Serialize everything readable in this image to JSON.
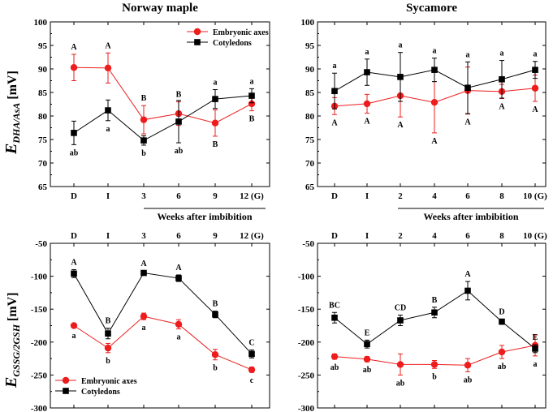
{
  "figure": {
    "y_label_top": {
      "main": "E",
      "sub": "DHA/AsA",
      "unit": " [mV]"
    },
    "y_label_bottom": {
      "main": "E",
      "sub": "GSSG/2GSH",
      "unit": " [mV]"
    },
    "weeks_label_left": "Weeks after imbibition",
    "weeks_label_right": "Weeks after imbibition"
  },
  "chart_data": [
    {
      "id": "norway-maple-dha",
      "type": "line",
      "title": "Norway maple",
      "categories": [
        "D",
        "I",
        "3",
        "6",
        "9",
        "12 (G)"
      ],
      "ylim": [
        65,
        100
      ],
      "yticks": [
        65,
        70,
        75,
        80,
        85,
        90,
        95,
        100
      ],
      "tick_labels_on_top": false,
      "legend": {
        "position": "top-right",
        "entries": [
          "Embryonic axes",
          "Cotyledons"
        ]
      },
      "series": [
        {
          "name": "Embryonic axes",
          "color": "#ee1c1c",
          "marker": "circle",
          "values": [
            90.3,
            90.2,
            79.2,
            80.5,
            78.5,
            82.6
          ],
          "errors": [
            2.8,
            3.2,
            3.0,
            2.5,
            2.8,
            1.5
          ],
          "labels": [
            "A",
            "A",
            "B",
            "B",
            "B",
            "B"
          ],
          "label_side": [
            "above",
            "above",
            "above",
            "above",
            "below",
            "below"
          ]
        },
        {
          "name": "Cotyledons",
          "color": "#000000",
          "marker": "square",
          "values": [
            76.4,
            81.2,
            74.8,
            78.8,
            83.6,
            84.3
          ],
          "errors": [
            2.5,
            2.2,
            1.0,
            4.5,
            2.0,
            1.5
          ],
          "labels": [
            "ab",
            "a",
            "b",
            "ab",
            "a",
            "a"
          ],
          "label_side": [
            "below",
            "below",
            "below",
            "below",
            "above",
            "above"
          ]
        }
      ]
    },
    {
      "id": "sycamore-dha",
      "type": "line",
      "title": "Sycamore",
      "categories": [
        "D",
        "I",
        "2",
        "4",
        "6",
        "8",
        "10 (G)"
      ],
      "ylim": [
        65,
        100
      ],
      "yticks": [
        65,
        70,
        75,
        80,
        85,
        90,
        95,
        100
      ],
      "tick_labels_on_top": false,
      "series": [
        {
          "name": "Embryonic axes",
          "color": "#ee1c1c",
          "marker": "circle",
          "values": [
            82.1,
            82.6,
            84.3,
            82.9,
            85.4,
            85.2,
            85.9
          ],
          "errors": [
            1.8,
            2.0,
            4.5,
            6.5,
            5.0,
            1.5,
            2.8
          ],
          "labels": [
            "A",
            "A",
            "A",
            "A",
            "A",
            "A",
            "A"
          ],
          "label_side": [
            "below",
            "below",
            "below",
            "below",
            "below",
            "below",
            "below"
          ]
        },
        {
          "name": "Cotyledons",
          "color": "#000000",
          "marker": "square",
          "values": [
            85.3,
            89.3,
            88.3,
            89.8,
            86.0,
            87.8,
            89.8
          ],
          "errors": [
            3.8,
            2.8,
            5.2,
            2.5,
            5.5,
            4.0,
            1.8
          ],
          "labels": [
            "a",
            "a",
            "a",
            "a",
            "a",
            "a",
            "a"
          ],
          "label_side": [
            "above",
            "above",
            "above",
            "above",
            "above",
            "above",
            "above"
          ]
        }
      ]
    },
    {
      "id": "norway-maple-gssg",
      "type": "line",
      "title": "",
      "categories": [
        "D",
        "I",
        "3",
        "6",
        "9",
        "12 (G)"
      ],
      "ylim": [
        -300,
        -50
      ],
      "yticks": [
        -300,
        -250,
        -200,
        -150,
        -100,
        -50
      ],
      "tick_labels_on_top": true,
      "legend": {
        "position": "bottom-left",
        "entries": [
          "Embryonic axes",
          "Cotyledons"
        ]
      },
      "series": [
        {
          "name": "Embryonic axes",
          "color": "#ee1c1c",
          "marker": "circle",
          "values": [
            -175,
            -209,
            -161,
            -173,
            -219,
            -242
          ],
          "errors": [
            3,
            7,
            5,
            7,
            8,
            4
          ],
          "labels": [
            "a",
            "b",
            "a",
            "a",
            "b",
            "c"
          ],
          "label_side": [
            "below",
            "below",
            "below",
            "below",
            "below",
            "below"
          ]
        },
        {
          "name": "Cotyledons",
          "color": "#000000",
          "marker": "square",
          "values": [
            -96,
            -187,
            -95,
            -103,
            -158,
            -218
          ],
          "errors": [
            6,
            8,
            3,
            5,
            5,
            6
          ],
          "labels": [
            "A",
            "B",
            "A",
            "A",
            "B",
            "C"
          ],
          "label_side": [
            "above",
            "above",
            "above",
            "above",
            "above",
            "above"
          ]
        }
      ]
    },
    {
      "id": "sycamore-gssg",
      "type": "line",
      "title": "",
      "categories": [
        "D",
        "I",
        "2",
        "4",
        "6",
        "8",
        "10 (G)"
      ],
      "ylim": [
        -300,
        -50
      ],
      "yticks": [
        -300,
        -250,
        -200,
        -150,
        -100,
        -50
      ],
      "tick_labels_on_top": true,
      "series": [
        {
          "name": "Embryonic axes",
          "color": "#ee1c1c",
          "marker": "circle",
          "values": [
            -222,
            -226,
            -234,
            -234,
            -235,
            -215,
            -205
          ],
          "errors": [
            4,
            4,
            16,
            6,
            10,
            10,
            16
          ],
          "labels": [
            "ab",
            "ab",
            "ab",
            "b",
            "ab",
            "ab",
            "a"
          ],
          "label_side": [
            "below",
            "below",
            "below",
            "below",
            "below",
            "below",
            "below"
          ]
        },
        {
          "name": "Cotyledons",
          "color": "#000000",
          "marker": "square",
          "values": [
            -163,
            -203,
            -167,
            -155,
            -122,
            -169,
            -210
          ],
          "errors": [
            8,
            6,
            8,
            8,
            14,
            4,
            6
          ],
          "labels": [
            "BC",
            "E",
            "CD",
            "B",
            "A",
            "D",
            "E"
          ],
          "label_side": [
            "above",
            "above",
            "above",
            "above",
            "above",
            "above",
            "above"
          ]
        }
      ]
    }
  ]
}
